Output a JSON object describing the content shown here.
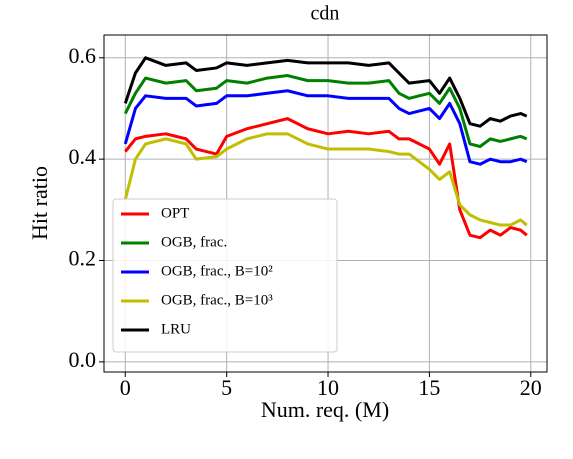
{
  "chart_data": {
    "type": "line",
    "title": "cdn",
    "x_label": "Num. req. (M)",
    "y_label": "Hit ratio",
    "x": [
      0,
      0.5,
      1,
      2,
      3,
      3.5,
      4.5,
      5,
      6,
      7,
      8,
      9,
      10,
      11,
      12,
      13,
      13.5,
      14,
      15,
      15.5,
      16,
      16.5,
      17,
      17.5,
      18,
      18.5,
      19,
      19.5,
      19.8
    ],
    "series": [
      {
        "name": "OPT",
        "color": "#ff0000",
        "values": [
          0.415,
          0.44,
          0.445,
          0.45,
          0.44,
          0.42,
          0.41,
          0.445,
          0.46,
          0.47,
          0.48,
          0.46,
          0.45,
          0.455,
          0.45,
          0.455,
          0.44,
          0.44,
          0.42,
          0.39,
          0.43,
          0.3,
          0.25,
          0.245,
          0.26,
          0.25,
          0.265,
          0.26,
          0.25
        ]
      },
      {
        "name": "OGB, frac.",
        "color": "#008000",
        "values": [
          0.49,
          0.53,
          0.56,
          0.55,
          0.555,
          0.535,
          0.54,
          0.555,
          0.55,
          0.56,
          0.565,
          0.555,
          0.555,
          0.55,
          0.55,
          0.555,
          0.53,
          0.52,
          0.53,
          0.51,
          0.54,
          0.5,
          0.43,
          0.425,
          0.44,
          0.435,
          0.44,
          0.445,
          0.44
        ]
      },
      {
        "name": "OGB, frac., B=10²",
        "color": "#0000ff",
        "values": [
          0.43,
          0.5,
          0.525,
          0.52,
          0.52,
          0.505,
          0.51,
          0.525,
          0.525,
          0.53,
          0.535,
          0.525,
          0.525,
          0.52,
          0.52,
          0.52,
          0.5,
          0.49,
          0.5,
          0.48,
          0.51,
          0.47,
          0.395,
          0.39,
          0.4,
          0.395,
          0.395,
          0.4,
          0.395
        ]
      },
      {
        "name": "OGB, frac., B=10³",
        "color": "#bfbf00",
        "values": [
          0.32,
          0.4,
          0.43,
          0.44,
          0.43,
          0.4,
          0.405,
          0.42,
          0.44,
          0.45,
          0.45,
          0.43,
          0.42,
          0.42,
          0.42,
          0.415,
          0.41,
          0.41,
          0.38,
          0.36,
          0.375,
          0.31,
          0.29,
          0.28,
          0.275,
          0.27,
          0.27,
          0.28,
          0.27
        ]
      },
      {
        "name": "LRU",
        "color": "#000000",
        "values": [
          0.51,
          0.57,
          0.6,
          0.585,
          0.59,
          0.575,
          0.58,
          0.59,
          0.585,
          0.59,
          0.595,
          0.59,
          0.59,
          0.59,
          0.585,
          0.59,
          0.57,
          0.55,
          0.555,
          0.53,
          0.56,
          0.52,
          0.47,
          0.465,
          0.48,
          0.475,
          0.485,
          0.49,
          0.485
        ]
      }
    ],
    "xlim": [
      -1.05,
      20.8
    ],
    "ylim": [
      -0.02,
      0.645
    ],
    "xticks": [
      0,
      5,
      10,
      15,
      20
    ],
    "yticks": [
      {
        "value": 0,
        "label": "0.0"
      },
      {
        "value": 0.2,
        "label": "0.2"
      },
      {
        "value": 0.4,
        "label": "0.4"
      },
      {
        "value": 0.6,
        "label": "0.6"
      }
    ],
    "grid": true,
    "legend": "lower left"
  }
}
